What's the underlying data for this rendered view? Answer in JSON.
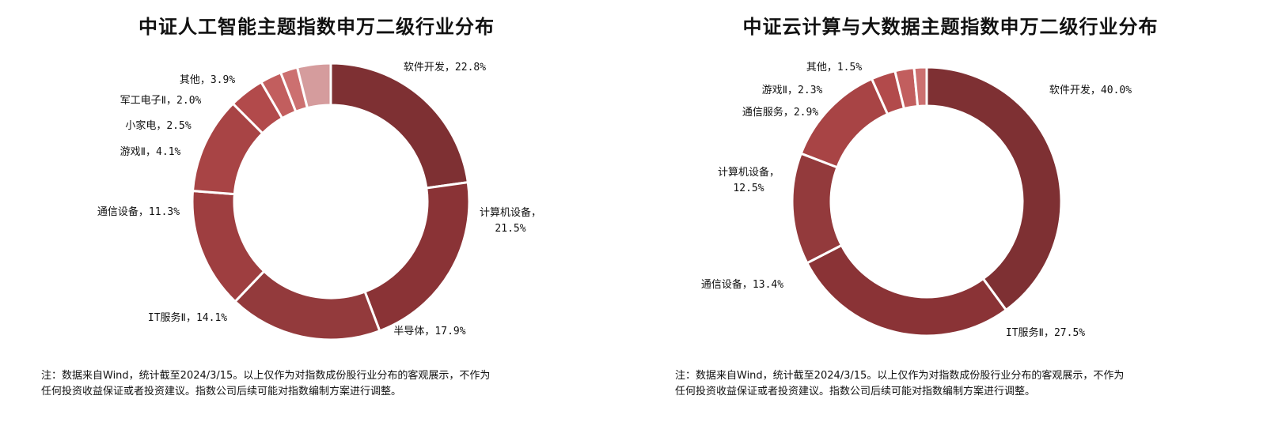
{
  "chart_data": [
    {
      "type": "pie",
      "donut": true,
      "title": "中证人工智能主题指数申万二级行业分布",
      "unit": "%",
      "colors": [
        "#7e3033",
        "#8a3336",
        "#933a3c",
        "#9e3e40",
        "#a84445",
        "#b24a4b",
        "#c25e5e",
        "#cc7070",
        "#d59c9d"
      ],
      "slices": [
        {
          "label": "软件开发，22.8%",
          "name": "软件开发",
          "value": 22.8
        },
        {
          "label": "计算机设备，21.5%",
          "name": "计算机设备",
          "value": 21.5
        },
        {
          "label": "半导体，17.9%",
          "name": "半导体",
          "value": 17.9
        },
        {
          "label": "IT服务Ⅱ，14.1%",
          "name": "IT服务Ⅱ",
          "value": 14.1
        },
        {
          "label": "通信设备，11.3%",
          "name": "通信设备",
          "value": 11.3
        },
        {
          "label": "游戏Ⅱ，4.1%",
          "name": "游戏Ⅱ",
          "value": 4.1
        },
        {
          "label": "小家电，2.5%",
          "name": "小家电",
          "value": 2.5
        },
        {
          "label": "军工电子Ⅱ，2.0%",
          "name": "军工电子Ⅱ",
          "value": 2.0
        },
        {
          "label": "其他，3.9%",
          "name": "其他",
          "value": 3.9
        }
      ]
    },
    {
      "type": "pie",
      "donut": true,
      "title": "中证云计算与大数据主题指数申万二级行业分布",
      "unit": "%",
      "colors": [
        "#7e3033",
        "#8a3336",
        "#933a3c",
        "#a84445",
        "#b24a4b",
        "#c25e5e",
        "#cc7070"
      ],
      "slices": [
        {
          "label": "软件开发，40.0%",
          "name": "软件开发",
          "value": 40.0
        },
        {
          "label": "IT服务Ⅱ，27.5%",
          "name": "IT服务Ⅱ",
          "value": 27.5
        },
        {
          "label": "通信设备，13.4%",
          "name": "通信设备",
          "value": 13.4
        },
        {
          "label": "计算机设备，12.5%",
          "name": "计算机设备",
          "value": 12.5
        },
        {
          "label": "通信服务，2.9%",
          "name": "通信服务",
          "value": 2.9
        },
        {
          "label": "游戏Ⅱ，2.3%",
          "name": "游戏Ⅱ",
          "value": 2.3
        },
        {
          "label": "其他，1.5%",
          "name": "其他",
          "value": 1.5
        }
      ]
    }
  ],
  "notes": {
    "left": {
      "line1": "注：数据来自Wind，统计截至2024/3/15。以上仅作为对指数成份股行业分布的客观展示，不作为",
      "line2": "任何投资收益保证或者投资建议。指数公司后续可能对指数编制方案进行调整。"
    },
    "right": {
      "line1": "注：数据来自Wind，统计截至2024/3/15。以上仅作为对指数成份股行业分布的客观展示，不作为",
      "line2": "任何投资收益保证或者投资建议。指数公司后续可能对指数编制方案进行调整。"
    }
  }
}
